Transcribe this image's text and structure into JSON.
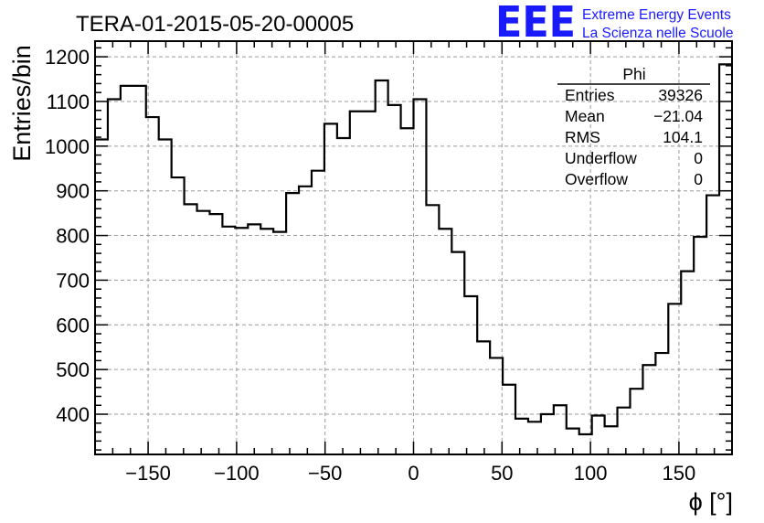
{
  "chart_data": {
    "type": "histogram",
    "title": "TERA-01-2015-05-20-00005",
    "xlabel": "ϕ [°]",
    "ylabel": "Entries/bin",
    "xlim": [
      -180,
      180
    ],
    "ylim": [
      310,
      1235
    ],
    "x_ticks": [
      -150,
      -100,
      -50,
      0,
      50,
      100,
      150
    ],
    "x_tick_labels": [
      "−150",
      "−100",
      "−50",
      "0",
      "50",
      "100",
      "150"
    ],
    "y_ticks": [
      400,
      500,
      600,
      700,
      800,
      900,
      1000,
      1100,
      1200
    ],
    "y_tick_labels": [
      "400",
      "500",
      "600",
      "700",
      "800",
      "900",
      "1000",
      "1100",
      "1200"
    ],
    "grid": true,
    "bin_edges": [
      -180,
      -172.8,
      -165.6,
      -158.4,
      -151.2,
      -144,
      -136.8,
      -129.6,
      -122.4,
      -115.2,
      -108,
      -100.8,
      -93.6,
      -86.4,
      -79.2,
      -72,
      -64.8,
      -57.6,
      -50.4,
      -43.2,
      -36,
      -28.8,
      -21.6,
      -14.4,
      -7.2,
      0,
      7.2,
      14.4,
      21.6,
      28.8,
      36,
      43.2,
      50.4,
      57.6,
      64.8,
      72,
      79.2,
      86.4,
      93.6,
      100.8,
      108,
      115.2,
      122.4,
      129.6,
      136.8,
      144,
      151.2,
      158.4,
      165.6,
      172.8,
      180
    ],
    "values": [
      1015,
      1105,
      1135,
      1135,
      1065,
      1015,
      930,
      870,
      855,
      848,
      820,
      817,
      825,
      815,
      808,
      895,
      910,
      945,
      1050,
      1018,
      1078,
      1078,
      1147,
      1092,
      1040,
      1105,
      868,
      815,
      763,
      664,
      563,
      526,
      466,
      390,
      383,
      400,
      420,
      368,
      355,
      397,
      373,
      415,
      457,
      510,
      537,
      647,
      720,
      797,
      890,
      1183
    ],
    "stats": {
      "name": "Phi",
      "rows": [
        {
          "label": "Entries",
          "value": "39326"
        },
        {
          "label": "Mean",
          "value": "−21.04"
        },
        {
          "label": "RMS",
          "value": "104.1"
        },
        {
          "label": "Underflow",
          "value": "0"
        },
        {
          "label": "Overflow",
          "value": "0"
        }
      ]
    }
  },
  "logo": {
    "mark": "EEE",
    "line1": "Extreme Energy Events",
    "line2": "La Scienza nelle Scuole",
    "color": "#1a1aff"
  }
}
